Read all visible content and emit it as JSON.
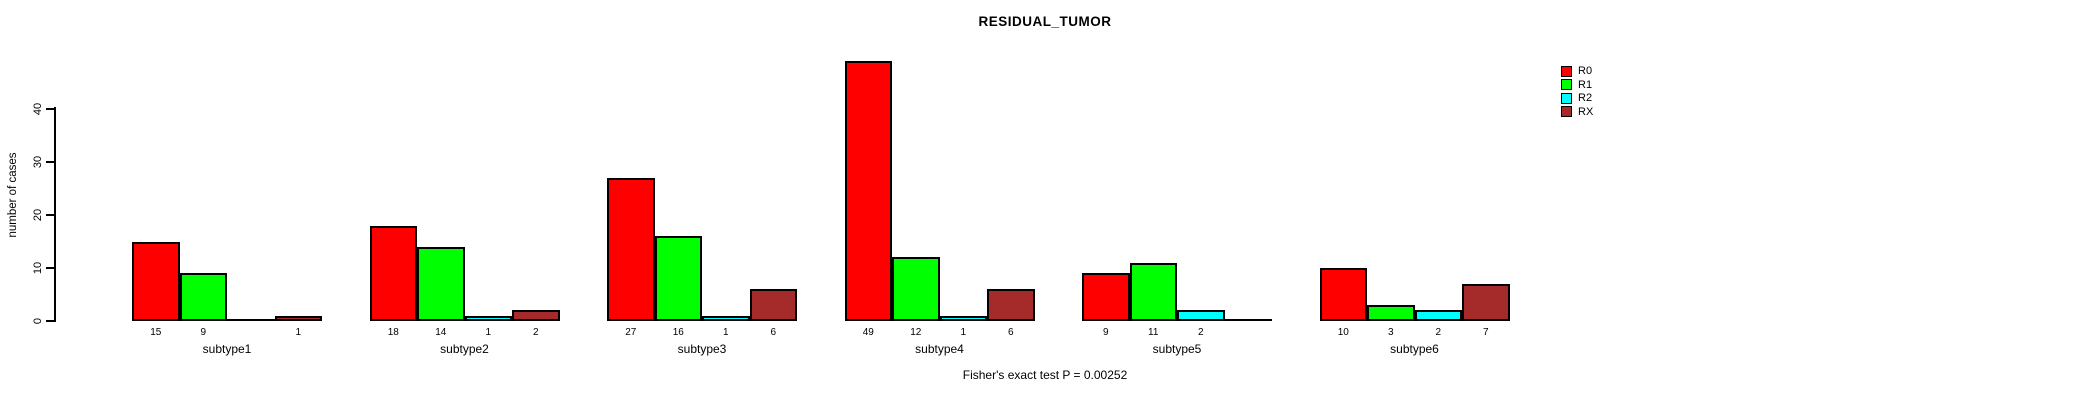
{
  "chart_data": {
    "type": "bar",
    "title": "RESIDUAL_TUMOR",
    "ylabel": "number of cases",
    "xlabel": "",
    "categories": [
      "subtype1",
      "subtype2",
      "subtype3",
      "subtype4",
      "subtype5",
      "subtype6"
    ],
    "series": [
      {
        "name": "R0",
        "color": "#FF0000",
        "values": [
          15,
          18,
          27,
          49,
          9,
          10
        ]
      },
      {
        "name": "R1",
        "color": "#00FF00",
        "values": [
          9,
          14,
          16,
          12,
          11,
          3
        ]
      },
      {
        "name": "R2",
        "color": "#00FFFF",
        "values": [
          0,
          1,
          1,
          1,
          2,
          2
        ]
      },
      {
        "name": "RX",
        "color": "#A52A2A",
        "values": [
          1,
          2,
          6,
          6,
          0,
          7
        ]
      }
    ],
    "yticks": [
      0,
      10,
      20,
      30,
      40
    ],
    "ylim": [
      0,
      49
    ],
    "grid": false,
    "legend_position": "top-right",
    "zero_value_labels_hidden": true,
    "annotation": "Fisher's exact test P = 0.00252"
  }
}
